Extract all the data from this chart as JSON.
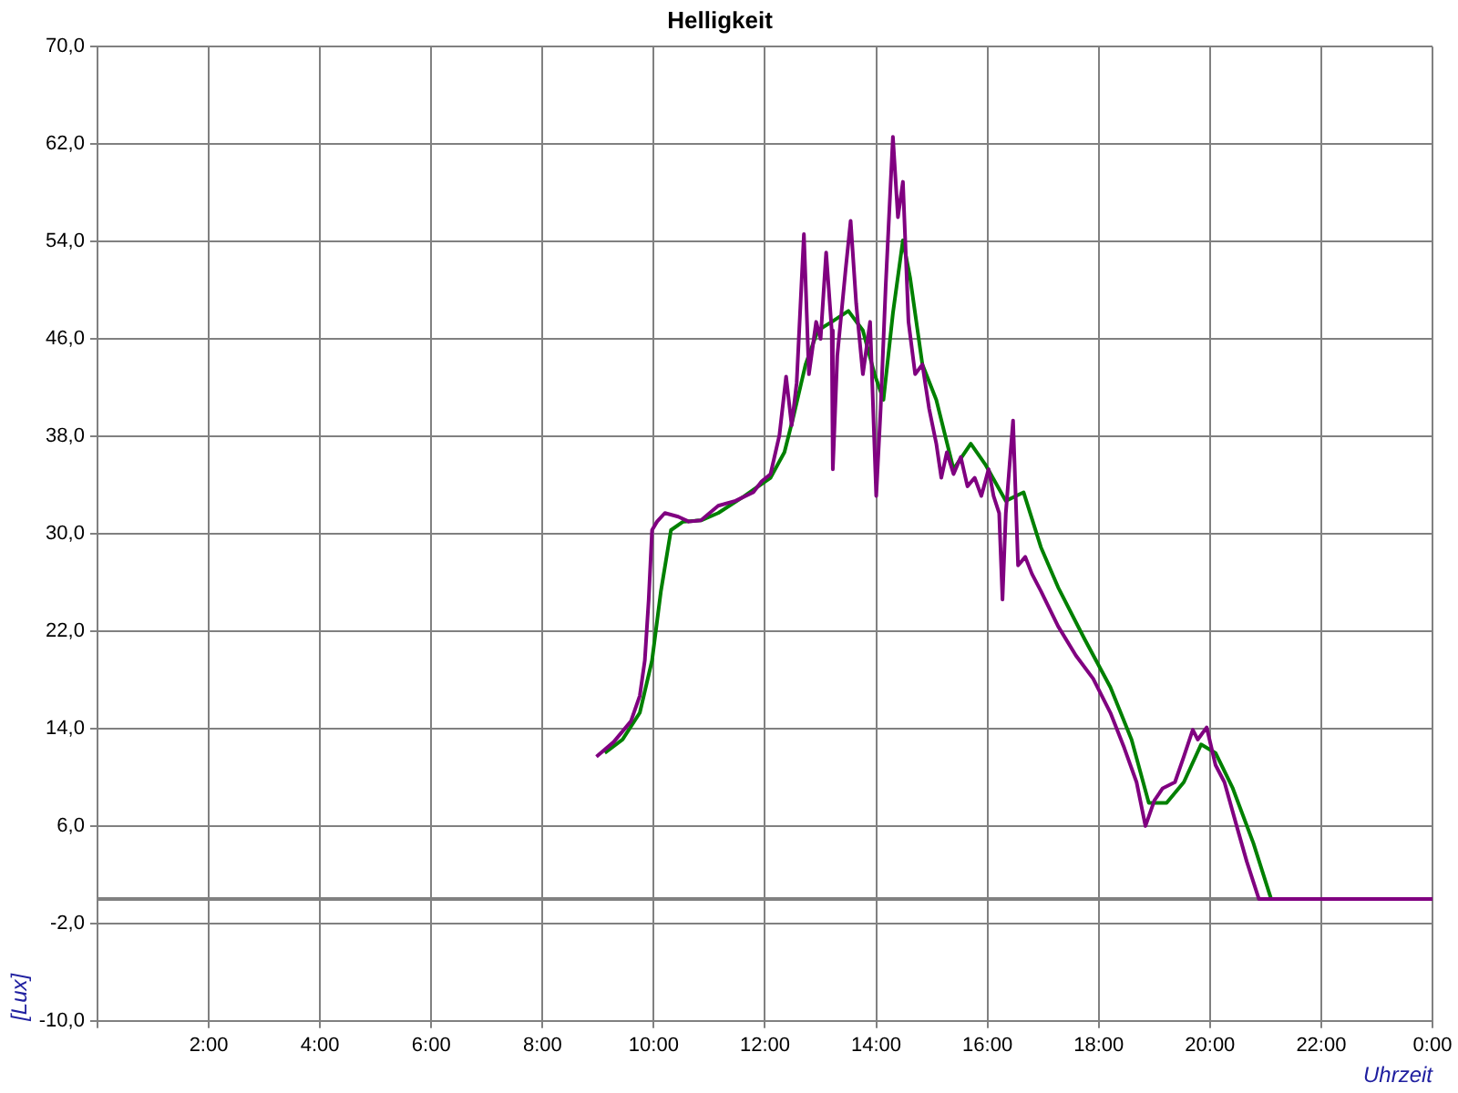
{
  "chart_data": {
    "type": "line",
    "title": "Helligkeit",
    "xlabel": "Uhrzeit",
    "ylabel": "[Lux]",
    "xlim": [
      0,
      24
    ],
    "xticks": [
      {
        "value": 0,
        "label": null
      },
      {
        "value": 2,
        "label": "2:00"
      },
      {
        "value": 4,
        "label": "4:00"
      },
      {
        "value": 6,
        "label": "6:00"
      },
      {
        "value": 8,
        "label": "8:00"
      },
      {
        "value": 10,
        "label": "10:00"
      },
      {
        "value": 12,
        "label": "12:00"
      },
      {
        "value": 14,
        "label": "14:00"
      },
      {
        "value": 16,
        "label": "16:00"
      },
      {
        "value": 18,
        "label": "18:00"
      },
      {
        "value": 20,
        "label": "20:00"
      },
      {
        "value": 22,
        "label": "22:00"
      },
      {
        "value": 24,
        "label": "0:00"
      }
    ],
    "ylim": [
      -10,
      70
    ],
    "yticks": [
      {
        "value": -10,
        "label": "-10,0"
      },
      {
        "value": -2,
        "label": "-2,0"
      },
      {
        "value": 6,
        "label": "6,0"
      },
      {
        "value": 14,
        "label": "14,0"
      },
      {
        "value": 22,
        "label": "22,0"
      },
      {
        "value": 30,
        "label": "30,0"
      },
      {
        "value": 38,
        "label": "38,0"
      },
      {
        "value": 46,
        "label": "46,0"
      },
      {
        "value": 54,
        "label": "54,0"
      },
      {
        "value": 62,
        "label": "62,0"
      },
      {
        "value": 70,
        "label": "70,0"
      }
    ],
    "grid": true,
    "legend": false,
    "marker": "none",
    "line_style": "solid",
    "ref_lines": [
      {
        "axis": "y",
        "value": 0,
        "color": "#808080"
      }
    ],
    "series": [
      {
        "color": "#800080",
        "x": [
          8.97,
          9.28,
          9.59,
          9.75,
          9.84,
          9.91,
          9.97,
          10.06,
          10.2,
          10.44,
          10.63,
          10.85,
          11.16,
          11.47,
          11.79,
          11.94,
          12.1,
          12.26,
          12.38,
          12.48,
          12.57,
          12.7,
          12.79,
          12.92,
          13.0,
          13.1,
          13.2,
          13.22,
          13.3,
          13.45,
          13.54,
          13.64,
          13.76,
          13.89,
          14.0,
          14.08,
          14.17,
          14.3,
          14.39,
          14.48,
          14.58,
          14.7,
          14.83,
          14.95,
          15.08,
          15.17,
          15.27,
          15.39,
          15.52,
          15.64,
          15.77,
          15.89,
          16.02,
          16.11,
          16.21,
          16.27,
          16.33,
          16.46,
          16.55,
          16.68,
          16.8,
          16.96,
          17.27,
          17.59,
          17.9,
          18.21,
          18.46,
          18.68,
          18.84,
          19.0,
          19.15,
          19.37,
          19.53,
          19.69,
          19.78,
          19.94,
          20.1,
          20.26,
          20.48,
          20.66,
          20.88,
          24
        ],
        "values": [
          11.7,
          12.9,
          14.6,
          16.7,
          19.6,
          24.6,
          30.3,
          31.0,
          31.7,
          31.4,
          31.0,
          31.1,
          32.3,
          32.7,
          33.4,
          34.3,
          34.9,
          38.1,
          42.9,
          38.9,
          42.4,
          54.6,
          43.1,
          47.4,
          46,
          53.1,
          46.7,
          35.3,
          44.6,
          51.7,
          55.7,
          48.9,
          43.1,
          47.4,
          33.1,
          40.3,
          50.3,
          62.6,
          56,
          58.9,
          47.4,
          43.1,
          43.9,
          40.3,
          37.4,
          34.6,
          36.7,
          34.9,
          36.3,
          33.9,
          34.6,
          33.1,
          35.3,
          33.1,
          31.7,
          24.6,
          31.7,
          39.3,
          27.4,
          28.1,
          26.7,
          25.3,
          22.4,
          20,
          18.1,
          15.3,
          12.4,
          9.6,
          6.0,
          8.1,
          9.1,
          9.6,
          11.7,
          13.9,
          13.1,
          14.1,
          11,
          9.6,
          6.0,
          3.1,
          0,
          0
        ]
      },
      {
        "color": "#008000",
        "x": [
          9.12,
          9.44,
          9.75,
          9.97,
          10.13,
          10.31,
          10.53,
          10.85,
          11.16,
          11.63,
          12.1,
          12.35,
          12.51,
          12.73,
          12.95,
          13.2,
          13.5,
          13.76,
          13.97,
          14.13,
          14.3,
          14.48,
          14.61,
          14.83,
          15.08,
          15.39,
          15.7,
          15.96,
          16.33,
          16.65,
          16.96,
          17.27,
          17.74,
          18.21,
          18.59,
          18.9,
          19.22,
          19.53,
          19.84,
          20.1,
          20.41,
          20.78,
          21.1,
          23.85
        ],
        "values": [
          12,
          13.1,
          15.3,
          19.6,
          25.3,
          30.3,
          31,
          31.1,
          31.7,
          33.1,
          34.6,
          36.7,
          39.6,
          43.9,
          46.7,
          47.4,
          48.3,
          46.7,
          43.1,
          41,
          48.1,
          54.1,
          51,
          43.9,
          41,
          35.3,
          37.4,
          35.7,
          32.7,
          33.4,
          28.9,
          25.6,
          21.4,
          17.4,
          13.1,
          7.9,
          7.9,
          9.6,
          12.7,
          12,
          9.1,
          4.6,
          0,
          0
        ]
      }
    ]
  }
}
